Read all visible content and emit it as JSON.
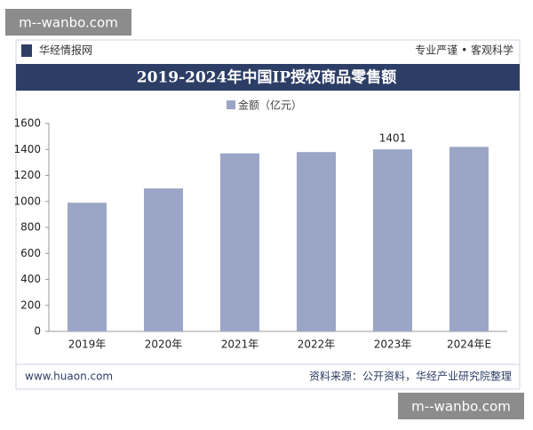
{
  "watermarks": [
    "m--wanbo.com",
    "m--wanbo.com"
  ],
  "header": {
    "brand": "华经情报网",
    "slogan": "专业严谨 • 客观科学"
  },
  "chart_data": {
    "type": "bar",
    "title": "2019-2024年中国IP授权商品零售额",
    "categories": [
      "2019年",
      "2020年",
      "2021年",
      "2022年",
      "2023年",
      "2024年E"
    ],
    "series": [
      {
        "name": "金额（亿元）",
        "color": "#9ba6c6",
        "values": [
          990,
          1100,
          1370,
          1380,
          1401,
          1420
        ]
      }
    ],
    "value_labels": [
      null,
      null,
      null,
      null,
      "1401",
      null
    ],
    "ylim": [
      0,
      1600
    ],
    "yticks": [
      0,
      200,
      400,
      600,
      800,
      1000,
      1200,
      1400,
      1600
    ],
    "grid": false
  },
  "footer": {
    "site": "www.huaon.com",
    "source": "资料来源：公开资料，华经产业研究院整理"
  }
}
